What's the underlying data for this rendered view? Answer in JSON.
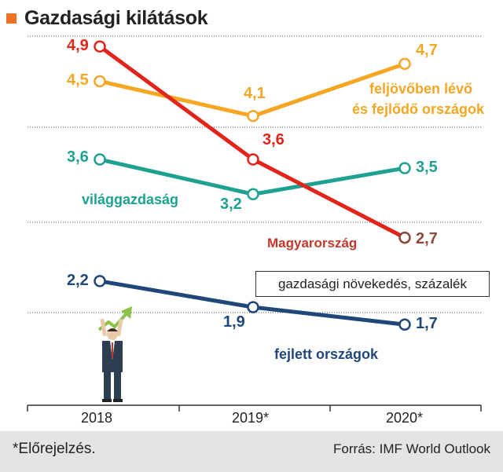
{
  "title": "Gazdasági kilátások",
  "unit_label": "gazdasági növekedés, százalék",
  "footnote": "*Előrejelzés.",
  "source": "Forrás: IMF World Outlook",
  "colors": {
    "accent": "#ee7222",
    "grid": "#555555",
    "axis": "#333333"
  },
  "chart_data": {
    "type": "line",
    "categories": [
      "2018",
      "2019*",
      "2020*"
    ],
    "ylim": [
      0.5,
      5.2
    ],
    "grid": true,
    "series": [
      {
        "name": "Magyarország",
        "color": "#e1251b",
        "label_color": "#c0392b",
        "values": [
          4.9,
          3.6,
          2.7
        ],
        "value_labels": [
          "4,9",
          "3,6",
          "2,7"
        ]
      },
      {
        "name": "feljövőben lévő és fejlődő országok",
        "name_lines": [
          "feljövőben lévő",
          "és fejlődő országok"
        ],
        "color": "#f5a623",
        "values": [
          4.5,
          4.1,
          4.7
        ],
        "value_labels": [
          "4,5",
          "4,1",
          "4,7"
        ]
      },
      {
        "name": "világgazdaság",
        "color": "#1fa192",
        "values": [
          3.6,
          3.2,
          3.5
        ],
        "value_labels": [
          "3,6",
          "3,2",
          "3,5"
        ]
      },
      {
        "name": "fejlett országok",
        "color": "#1f477a",
        "values": [
          2.2,
          1.9,
          1.7
        ],
        "value_labels": [
          "2,2",
          "1,9",
          "1,7"
        ]
      }
    ]
  },
  "illustration": "businessman-with-rising-arrow-icon"
}
